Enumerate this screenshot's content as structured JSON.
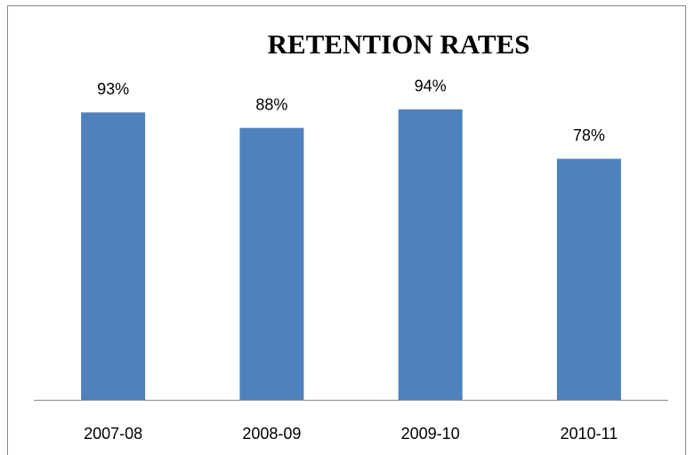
{
  "chart_data": {
    "type": "bar",
    "title": "RETENTION RATES",
    "categories": [
      "2007-08",
      "2008-09",
      "2009-10",
      "2010-11"
    ],
    "values": [
      93,
      88,
      94,
      78
    ],
    "value_labels": [
      "93%",
      "88%",
      "94%",
      "78%"
    ],
    "color": "#4f81bd",
    "ylim": [
      0,
      100
    ]
  }
}
